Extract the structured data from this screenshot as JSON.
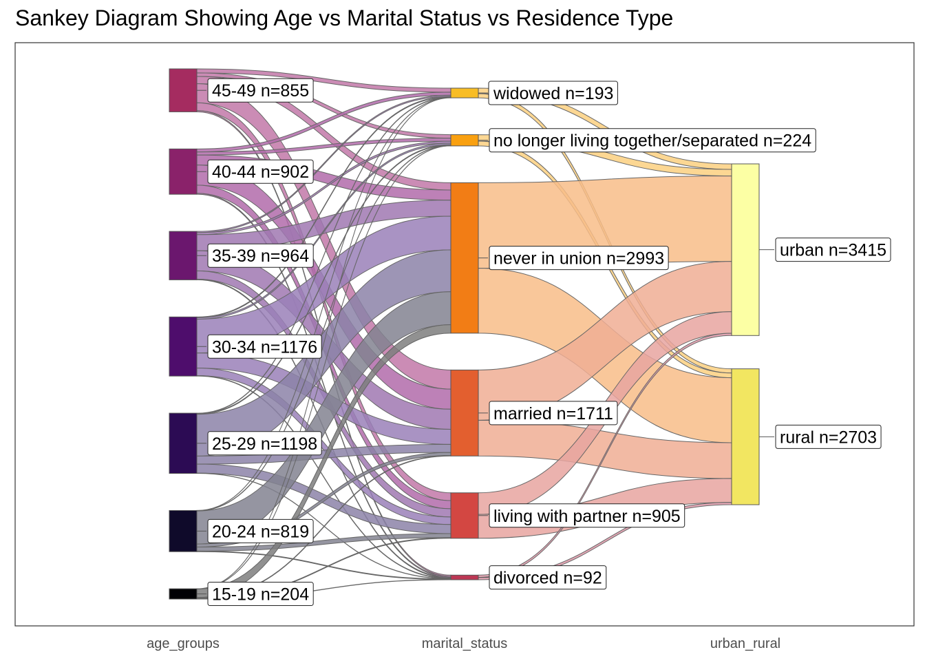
{
  "chart_data": {
    "type": "sankey",
    "title": "Sankey Diagram Showing Age vs Marital Status vs Residence Type",
    "axes": [
      "age_groups",
      "marital_status",
      "urban_rural"
    ],
    "nodes": {
      "age_groups": [
        {
          "name": "45-49",
          "n": 855,
          "label": "45-49 n=855",
          "color": "#A52C60"
        },
        {
          "name": "40-44",
          "n": 902,
          "label": "40-44 n=902",
          "color": "#8A226A"
        },
        {
          "name": "35-39",
          "n": 964,
          "label": "35-39 n=964",
          "color": "#6B176E"
        },
        {
          "name": "30-34",
          "n": 1176,
          "label": "30-34 n=1176",
          "color": "#4E0D6C"
        },
        {
          "name": "25-29",
          "n": 1198,
          "label": "25-29 n=1198",
          "color": "#2C0B54"
        },
        {
          "name": "20-24",
          "n": 819,
          "label": "20-24 n=819",
          "color": "#0F0A2A"
        },
        {
          "name": "15-19",
          "n": 204,
          "label": "15-19 n=204",
          "color": "#000004"
        }
      ],
      "marital_status": [
        {
          "name": "widowed",
          "n": 193,
          "label": "widowed n=193",
          "color": "#F8BD25"
        },
        {
          "name": "no longer living together/separated",
          "n": 224,
          "label": "no longer living together/separated n=224",
          "color": "#F9A010"
        },
        {
          "name": "never in union",
          "n": 2993,
          "label": "never in union n=2993",
          "color": "#F27D15"
        },
        {
          "name": "married",
          "n": 1711,
          "label": "married n=1711",
          "color": "#E35F2F"
        },
        {
          "name": "living with partner",
          "n": 905,
          "label": "living with partner n=905",
          "color": "#D34742"
        },
        {
          "name": "divorced",
          "n": 92,
          "label": "divorced n=92",
          "color": "#BC3754"
        }
      ],
      "urban_rural": [
        {
          "name": "urban",
          "n": 3415,
          "label": "urban n=3415",
          "color": "#FCFFA4"
        },
        {
          "name": "rural",
          "n": 2703,
          "label": "rural n=2703",
          "color": "#F2E661"
        }
      ]
    },
    "flows_age_to_marital": [
      {
        "from": "45-49",
        "to": "widowed",
        "value": 80,
        "color": "#C278A8"
      },
      {
        "from": "45-49",
        "to": "no longer living together/separated",
        "value": 70,
        "color": "#C278A8"
      },
      {
        "from": "45-49",
        "to": "never in union",
        "value": 145,
        "color": "#C278A8"
      },
      {
        "from": "45-49",
        "to": "married",
        "value": 380,
        "color": "#C278A8"
      },
      {
        "from": "45-49",
        "to": "living with partner",
        "value": 155,
        "color": "#C278A8"
      },
      {
        "from": "45-49",
        "to": "divorced",
        "value": 25,
        "color": "#C278A8"
      },
      {
        "from": "40-44",
        "to": "widowed",
        "value": 60,
        "color": "#B26BAA"
      },
      {
        "from": "40-44",
        "to": "no longer living together/separated",
        "value": 60,
        "color": "#B26BAA"
      },
      {
        "from": "40-44",
        "to": "never in union",
        "value": 200,
        "color": "#B26BAA"
      },
      {
        "from": "40-44",
        "to": "married",
        "value": 400,
        "color": "#B26BAA"
      },
      {
        "from": "40-44",
        "to": "living with partner",
        "value": 162,
        "color": "#B26BAA"
      },
      {
        "from": "40-44",
        "to": "divorced",
        "value": 20,
        "color": "#B26BAA"
      },
      {
        "from": "35-39",
        "to": "widowed",
        "value": 25,
        "color": "#A078B2"
      },
      {
        "from": "35-39",
        "to": "no longer living together/separated",
        "value": 40,
        "color": "#A078B2"
      },
      {
        "from": "35-39",
        "to": "never in union",
        "value": 320,
        "color": "#A078B2"
      },
      {
        "from": "35-39",
        "to": "married",
        "value": 400,
        "color": "#A078B2"
      },
      {
        "from": "35-39",
        "to": "living with partner",
        "value": 164,
        "color": "#A078B2"
      },
      {
        "from": "35-39",
        "to": "divorced",
        "value": 15,
        "color": "#A078B2"
      },
      {
        "from": "30-34",
        "to": "widowed",
        "value": 15,
        "color": "#9A80B8"
      },
      {
        "from": "30-34",
        "to": "no longer living together/separated",
        "value": 30,
        "color": "#9A80B8"
      },
      {
        "from": "30-34",
        "to": "never in union",
        "value": 671,
        "color": "#9A80B8"
      },
      {
        "from": "30-34",
        "to": "married",
        "value": 300,
        "color": "#9A80B8"
      },
      {
        "from": "30-34",
        "to": "living with partner",
        "value": 150,
        "color": "#9A80B8"
      },
      {
        "from": "30-34",
        "to": "divorced",
        "value": 10,
        "color": "#9A80B8"
      },
      {
        "from": "25-29",
        "to": "widowed",
        "value": 8,
        "color": "#8C82A8"
      },
      {
        "from": "25-29",
        "to": "no longer living together/separated",
        "value": 14,
        "color": "#8C82A8"
      },
      {
        "from": "25-29",
        "to": "never in union",
        "value": 831,
        "color": "#8C82A8"
      },
      {
        "from": "25-29",
        "to": "married",
        "value": 160,
        "color": "#8C82A8"
      },
      {
        "from": "25-29",
        "to": "living with partner",
        "value": 180,
        "color": "#8C82A8"
      },
      {
        "from": "25-29",
        "to": "divorced",
        "value": 5,
        "color": "#8C82A8"
      },
      {
        "from": "20-24",
        "to": "widowed",
        "value": 3,
        "color": "#828290"
      },
      {
        "from": "20-24",
        "to": "no longer living together/separated",
        "value": 7,
        "color": "#828290"
      },
      {
        "from": "20-24",
        "to": "never in union",
        "value": 657,
        "color": "#828290"
      },
      {
        "from": "20-24",
        "to": "married",
        "value": 60,
        "color": "#828290"
      },
      {
        "from": "20-24",
        "to": "living with partner",
        "value": 80,
        "color": "#828290"
      },
      {
        "from": "20-24",
        "to": "divorced",
        "value": 12,
        "color": "#828290"
      },
      {
        "from": "15-19",
        "to": "widowed",
        "value": 2,
        "color": "#7E7E7E"
      },
      {
        "from": "15-19",
        "to": "no longer living together/separated",
        "value": 3,
        "color": "#7E7E7E"
      },
      {
        "from": "15-19",
        "to": "never in union",
        "value": 169,
        "color": "#7E7E7E"
      },
      {
        "from": "15-19",
        "to": "married",
        "value": 11,
        "color": "#7E7E7E"
      },
      {
        "from": "15-19",
        "to": "living with partner",
        "value": 14,
        "color": "#7E7E7E"
      },
      {
        "from": "15-19",
        "to": "divorced",
        "value": 5,
        "color": "#7E7E7E"
      }
    ],
    "flows_marital_to_residence": [
      {
        "from": "widowed",
        "to": "urban",
        "value": 110,
        "color": "#FBD080"
      },
      {
        "from": "widowed",
        "to": "rural",
        "value": 83,
        "color": "#FBD080"
      },
      {
        "from": "no longer living together/separated",
        "to": "urban",
        "value": 130,
        "color": "#FBD080"
      },
      {
        "from": "no longer living together/separated",
        "to": "rural",
        "value": 94,
        "color": "#FBD080"
      },
      {
        "from": "never in union",
        "to": "urban",
        "value": 1700,
        "color": "#F8BD88"
      },
      {
        "from": "never in union",
        "to": "rural",
        "value": 1293,
        "color": "#F8BD88"
      },
      {
        "from": "married",
        "to": "urban",
        "value": 1000,
        "color": "#F0AE94"
      },
      {
        "from": "married",
        "to": "rural",
        "value": 711,
        "color": "#F0AE94"
      },
      {
        "from": "living with partner",
        "to": "urban",
        "value": 430,
        "color": "#E8A4A0"
      },
      {
        "from": "living with partner",
        "to": "rural",
        "value": 475,
        "color": "#E8A4A0"
      },
      {
        "from": "divorced",
        "to": "urban",
        "value": 45,
        "color": "#DE98A8"
      },
      {
        "from": "divorced",
        "to": "rural",
        "value": 47,
        "color": "#DE98A8"
      }
    ],
    "grid": false,
    "legend": "none"
  }
}
